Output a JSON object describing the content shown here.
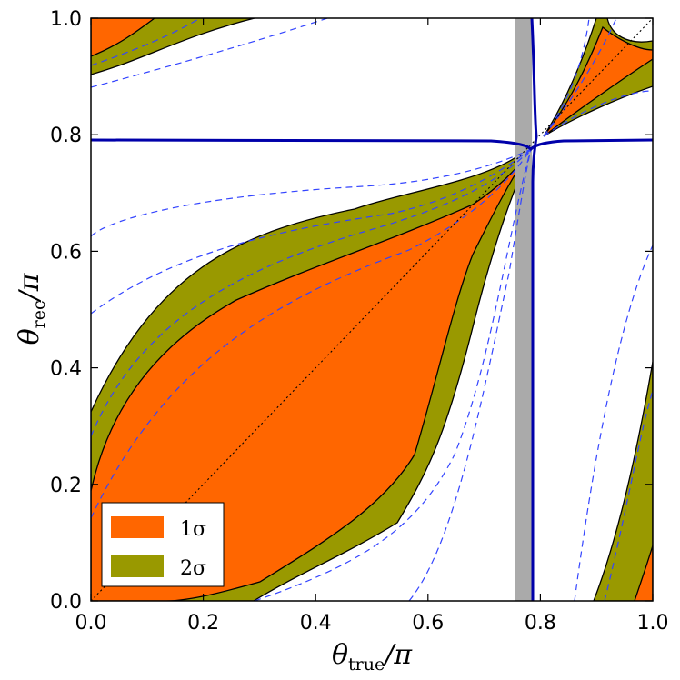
{
  "chart_data": {
    "type": "area",
    "title": "",
    "xlabel": {
      "main": "θ",
      "sub": "true",
      "suffix": "/π"
    },
    "ylabel": {
      "main": "θ",
      "sub": "rec",
      "suffix": "/π"
    },
    "xlim": [
      0,
      1
    ],
    "ylim": [
      0,
      1
    ],
    "xticks": [
      "0.0",
      "0.2",
      "0.4",
      "0.6",
      "0.8",
      "1.0"
    ],
    "yticks": [
      "0.0",
      "0.2",
      "0.4",
      "0.6",
      "0.8",
      "1.0"
    ],
    "grid": false,
    "legend_position": "bottom-left",
    "legend": [
      {
        "label": "1σ",
        "color": "#ff6600"
      },
      {
        "label": "2σ",
        "color": "#999900"
      }
    ],
    "colors": {
      "one_sigma": "#ff6600",
      "two_sigma": "#999900",
      "dashed": "#3344ff",
      "solid_blue": "#0000aa",
      "shaded_band": "#aaaaaa"
    },
    "shaded_band_x": [
      0.755,
      0.785
    ],
    "singular_point": [
      0.785,
      0.795
    ],
    "horizontal_line_y": 0.795,
    "vertical_line_x": 0.785,
    "bands": [
      {
        "name": "1σ",
        "upper": [
          [
            0,
            0.15
          ],
          [
            0.1,
            0.3
          ],
          [
            0.2,
            0.42
          ],
          [
            0.3,
            0.5
          ],
          [
            0.4,
            0.56
          ],
          [
            0.5,
            0.61
          ],
          [
            0.6,
            0.655
          ],
          [
            0.7,
            0.72
          ],
          [
            0.785,
            0.785
          ]
        ],
        "lower": [
          [
            0,
            0
          ],
          [
            0.14,
            0
          ],
          [
            0.3,
            0.06
          ],
          [
            0.45,
            0.15
          ],
          [
            0.55,
            0.25
          ],
          [
            0.62,
            0.4
          ],
          [
            0.7,
            0.6
          ],
          [
            0.785,
            0.785
          ]
        ]
      },
      {
        "name": "2σ",
        "upper": [
          [
            0,
            0.42
          ],
          [
            0.05,
            0.5
          ],
          [
            0.15,
            0.57
          ],
          [
            0.3,
            0.61
          ],
          [
            0.45,
            0.64
          ],
          [
            0.6,
            0.675
          ],
          [
            0.7,
            0.72
          ],
          [
            0.785,
            0.785
          ]
        ],
        "lower": [
          [
            0.27,
            0
          ],
          [
            0.4,
            0.05
          ],
          [
            0.55,
            0.12
          ],
          [
            0.62,
            0.25
          ],
          [
            0.7,
            0.5
          ],
          [
            0.785,
            0.785
          ]
        ]
      }
    ]
  }
}
